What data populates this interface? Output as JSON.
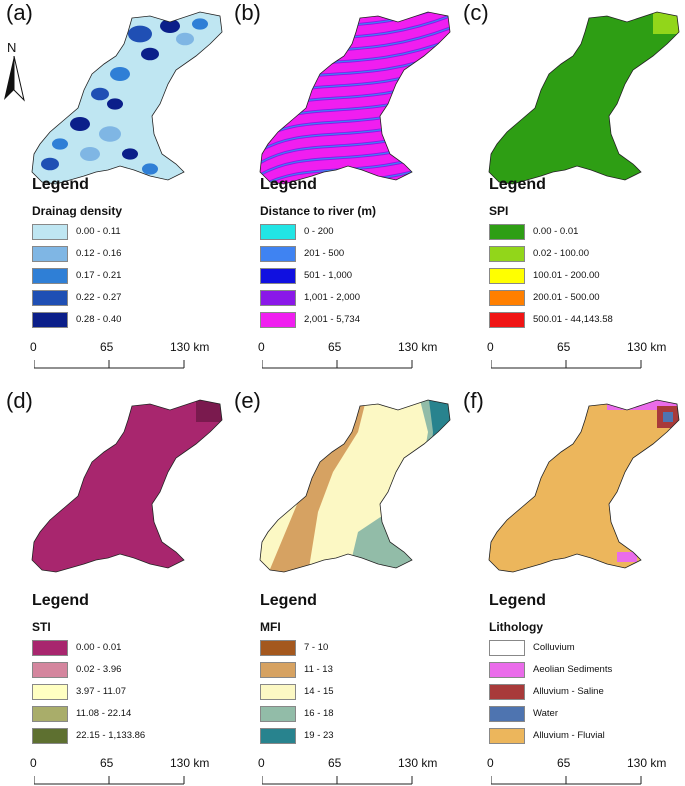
{
  "north_label": "N",
  "scale": {
    "labels": [
      "0",
      "65",
      "130 km"
    ]
  },
  "legend_heading": "Legend",
  "panels": [
    {
      "letter": "(a)",
      "subtitle": "Drainag density",
      "items": [
        {
          "label": "0.00 - 0.11",
          "color": "#bfe6f2"
        },
        {
          "label": "0.12 - 0.16",
          "color": "#7fb6e4"
        },
        {
          "label": "0.17 - 0.21",
          "color": "#2f7fd6"
        },
        {
          "label": "0.22 - 0.27",
          "color": "#1f4fb4"
        },
        {
          "label": "0.28 - 0.40",
          "color": "#0b1f8a"
        }
      ]
    },
    {
      "letter": "(b)",
      "subtitle": "Distance to river (m)",
      "items": [
        {
          "label": "0 - 200",
          "color": "#22e5e5"
        },
        {
          "label": "201 - 500",
          "color": "#3f83f2"
        },
        {
          "label": "501 - 1,000",
          "color": "#1010e0"
        },
        {
          "label": "1,001 - 2,000",
          "color": "#8a18e8"
        },
        {
          "label": "2,001 - 5,734",
          "color": "#f01ef0"
        }
      ]
    },
    {
      "letter": "(c)",
      "subtitle": "SPI",
      "items": [
        {
          "label": "0.00 - 0.01",
          "color": "#2e9e14"
        },
        {
          "label": "0.02 - 100.00",
          "color": "#92d61a"
        },
        {
          "label": "100.01 - 200.00",
          "color": "#ffff00"
        },
        {
          "label": "200.01 - 500.00",
          "color": "#ff7f00"
        },
        {
          "label": "500.01 - 44,143.58",
          "color": "#f01414"
        }
      ]
    },
    {
      "letter": "(d)",
      "subtitle": "STI",
      "items": [
        {
          "label": "0.00 - 0.01",
          "color": "#a8266e"
        },
        {
          "label": "0.02 - 3.96",
          "color": "#d4869e"
        },
        {
          "label": "3.97 - 11.07",
          "color": "#ffffc2"
        },
        {
          "label": "11.08 - 22.14",
          "color": "#a9ad6a"
        },
        {
          "label": "22.15 - 1,133.86",
          "color": "#5e7030"
        }
      ]
    },
    {
      "letter": "(e)",
      "subtitle": "MFI",
      "items": [
        {
          "label": "7 - 10",
          "color": "#a4581e"
        },
        {
          "label": "11 - 13",
          "color": "#d6a262"
        },
        {
          "label": "14 - 15",
          "color": "#fcf8c4"
        },
        {
          "label": "16 - 18",
          "color": "#92bca8"
        },
        {
          "label": "19 - 23",
          "color": "#28838e"
        }
      ]
    },
    {
      "letter": "(f)",
      "subtitle": "Lithology",
      "items": [
        {
          "label": "Colluvium",
          "color": "#ffffff"
        },
        {
          "label": "Aeolian Sediments",
          "color": "#ea6cea"
        },
        {
          "label": "Alluvium - Saline",
          "color": "#a83a3a"
        },
        {
          "label": "Water",
          "color": "#4e74b0"
        },
        {
          "label": "Alluvium - Fluvial",
          "color": "#ecb65c"
        }
      ]
    }
  ]
}
